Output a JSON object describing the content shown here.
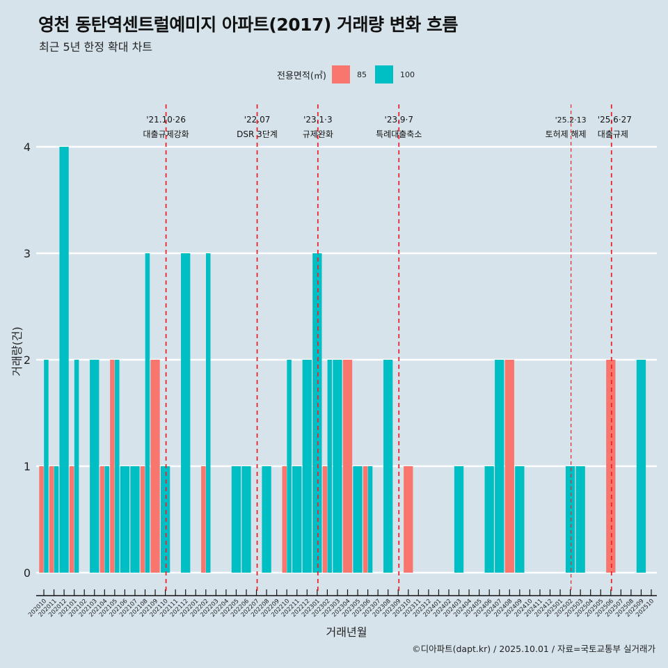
{
  "header": {
    "title": "영천 동탄역센트럴예미지 아파트(2017) 거래량 변화 흐름",
    "subtitle": "최근 5년 한정 확대 차트"
  },
  "legend": {
    "title": "전용면적(㎡)",
    "items": [
      {
        "label": "85",
        "color": "#f8766d"
      },
      {
        "label": "100",
        "color": "#00bfc4"
      }
    ]
  },
  "caption": "©디아파트(dapt.kr) / 2025.10.01 / 자료=국토교통부 실거래가",
  "chart_data": {
    "type": "bar",
    "title": "영천 동탄역센트럴예미지 아파트(2017) 거래량 변화 흐름",
    "subtitle": "최근 5년 한정 확대 차트",
    "xlabel": "거래년월",
    "ylabel": "거래량(건)",
    "ylim": [
      0,
      4
    ],
    "yticks": [
      0,
      1,
      2,
      3,
      4
    ],
    "grid": true,
    "legend_position": "top",
    "categories": [
      "202010",
      "202011",
      "202012",
      "202101",
      "202102",
      "202103",
      "202104",
      "202105",
      "202106",
      "202107",
      "202108",
      "202109",
      "202110",
      "202111",
      "202112",
      "202201",
      "202202",
      "202203",
      "202204",
      "202205",
      "202206",
      "202207",
      "202208",
      "202209",
      "202210",
      "202211",
      "202212",
      "202301",
      "202302",
      "202303",
      "202304",
      "202305",
      "202306",
      "202307",
      "202308",
      "202309",
      "202310",
      "202311",
      "202312",
      "202401",
      "202402",
      "202403",
      "202404",
      "202405",
      "202406",
      "202407",
      "202408",
      "202409",
      "202410",
      "202411",
      "202412",
      "202501",
      "202502",
      "202503",
      "202504",
      "202505",
      "202506",
      "202507",
      "202508",
      "202509",
      "202510"
    ],
    "series": [
      {
        "name": "85",
        "color": "#f8766d",
        "values": [
          1,
          1,
          0,
          1,
          0,
          0,
          1,
          2,
          0,
          0,
          1,
          2,
          0,
          0,
          0,
          0,
          1,
          0,
          0,
          0,
          0,
          0,
          0,
          0,
          1,
          0,
          0,
          0,
          1,
          0,
          2,
          0,
          1,
          0,
          0,
          0,
          1,
          0,
          0,
          0,
          0,
          0,
          0,
          0,
          0,
          0,
          2,
          0,
          0,
          0,
          0,
          0,
          0,
          0,
          0,
          0,
          2,
          0,
          0,
          0,
          0
        ]
      },
      {
        "name": "100",
        "color": "#00bfc4",
        "values": [
          2,
          1,
          4,
          2,
          0,
          2,
          1,
          2,
          1,
          1,
          3,
          0,
          1,
          0,
          3,
          0,
          3,
          0,
          0,
          1,
          1,
          0,
          1,
          0,
          2,
          1,
          2,
          3,
          2,
          2,
          0,
          1,
          1,
          0,
          2,
          0,
          0,
          0,
          0,
          0,
          0,
          1,
          0,
          0,
          1,
          2,
          0,
          1,
          0,
          0,
          0,
          0,
          1,
          1,
          0,
          0,
          0,
          0,
          0,
          2,
          0
        ]
      }
    ],
    "annotations": [
      {
        "date": "'21.10·26",
        "label": "대출규제강화",
        "x": "202110"
      },
      {
        "date": "'22.07",
        "label": "DSR 3단계",
        "x": "202207"
      },
      {
        "date": "'23.1·3",
        "label": "규제완화",
        "x": "202301"
      },
      {
        "date": "'23.9·7",
        "label": "특례대출축소",
        "x": "202309"
      },
      {
        "date": "'25.2·13",
        "label": "토허제 해제",
        "x": "202502"
      },
      {
        "date": "'25.6·27",
        "label": "대출규제",
        "x": "202506"
      }
    ]
  }
}
